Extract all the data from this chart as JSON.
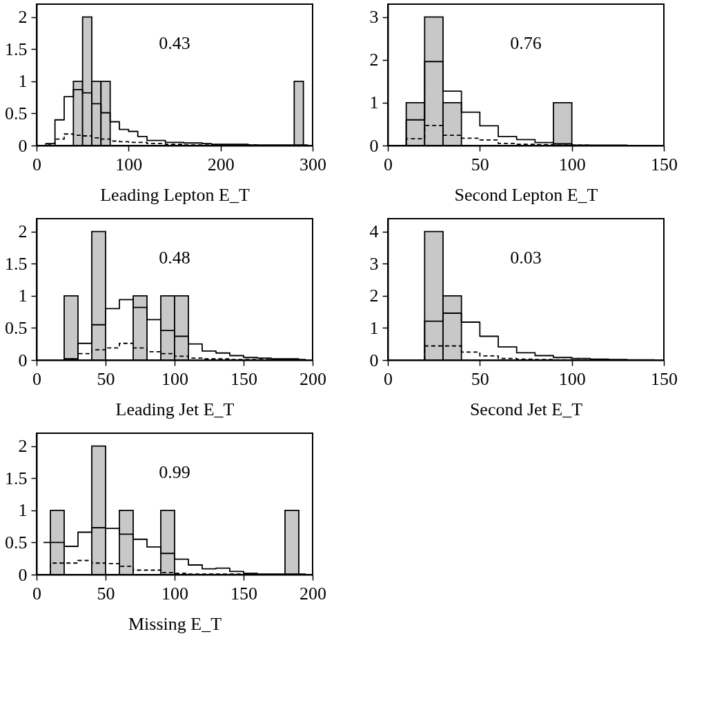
{
  "chart_data": [
    {
      "type": "bar",
      "xlabel": "Leading Lepton E_T",
      "annotations": [
        "0.43"
      ],
      "xlim": [
        0,
        300
      ],
      "xticks": [
        0,
        100,
        200,
        300
      ],
      "ylim": [
        0,
        2.2
      ],
      "yticks": [
        0,
        0.5,
        1,
        1.5,
        2
      ],
      "grid": false,
      "series": [
        {
          "type": "bar",
          "color": "#c8c8c8",
          "x": [
            5,
            15,
            25,
            35,
            45,
            55,
            65,
            75,
            85,
            95,
            105,
            115,
            125,
            135,
            145,
            155,
            165,
            175,
            185,
            195,
            205,
            215,
            225,
            235,
            245,
            255,
            265,
            275,
            285,
            295
          ],
          "values": [
            0,
            0,
            0,
            0,
            1,
            2,
            1,
            1,
            0,
            0,
            0,
            0,
            0,
            0,
            0,
            0,
            0,
            0,
            0,
            0,
            0,
            0,
            0,
            0,
            0,
            0,
            0,
            0,
            1,
            0
          ]
        },
        {
          "type": "step",
          "color": "#000000",
          "line_style": "solid",
          "x": [
            5,
            15,
            25,
            35,
            45,
            55,
            65,
            75,
            85,
            95,
            105,
            115,
            125,
            135,
            145,
            155,
            165,
            175,
            185,
            195,
            205,
            215,
            225,
            235,
            245,
            255,
            265,
            275,
            285,
            295
          ],
          "values": [
            0,
            0.03,
            0.4,
            0.76,
            0.87,
            0.82,
            0.65,
            0.51,
            0.37,
            0.25,
            0.22,
            0.14,
            0.08,
            0.08,
            0.05,
            0.05,
            0.04,
            0.04,
            0.03,
            0.02,
            0.02,
            0.02,
            0.02,
            0.01,
            0.01,
            0.01,
            0.01,
            0.01,
            0.01,
            0.01
          ]
        },
        {
          "type": "step",
          "color": "#000000",
          "line_style": "dashed",
          "x": [
            5,
            15,
            25,
            35,
            45,
            55,
            65,
            75,
            85,
            95,
            105,
            115,
            125,
            135,
            145,
            155,
            165,
            175,
            185,
            195,
            205,
            215,
            225,
            235,
            245,
            255,
            265,
            275,
            285,
            295
          ],
          "values": [
            0,
            0.01,
            0.1,
            0.18,
            0.16,
            0.15,
            0.12,
            0.1,
            0.07,
            0.06,
            0.05,
            0.05,
            0.03,
            0.03,
            0.02,
            0.02,
            0.01,
            0.01,
            0.01,
            0.01,
            0.01,
            0.01,
            0.01,
            0.01,
            0,
            0,
            0,
            0,
            0,
            0
          ]
        }
      ]
    },
    {
      "type": "bar",
      "xlabel": "Second Lepton E_T",
      "annotations": [
        "0.76"
      ],
      "xlim": [
        0,
        150
      ],
      "xticks": [
        0,
        50,
        100,
        150
      ],
      "ylim": [
        0,
        3.3
      ],
      "yticks": [
        0,
        1,
        2,
        3
      ],
      "grid": false,
      "series": [
        {
          "type": "bar",
          "color": "#c8c8c8",
          "x": [
            5,
            15,
            25,
            35,
            45,
            55,
            65,
            75,
            85,
            95,
            105,
            115,
            125,
            135,
            145
          ],
          "values": [
            0,
            1,
            3,
            1,
            0,
            0,
            0,
            0,
            0,
            1,
            0,
            0,
            0,
            0,
            0
          ]
        },
        {
          "type": "step",
          "color": "#000000",
          "line_style": "solid",
          "x": [
            5,
            15,
            25,
            35,
            45,
            55,
            65,
            75,
            85,
            95,
            105,
            115,
            125,
            135,
            145
          ],
          "values": [
            0,
            0.6,
            1.96,
            1.27,
            0.78,
            0.46,
            0.21,
            0.14,
            0.07,
            0.04,
            0.01,
            0.01,
            0.01,
            0,
            0
          ]
        },
        {
          "type": "step",
          "color": "#000000",
          "line_style": "dashed",
          "x": [
            5,
            15,
            25,
            35,
            45,
            55,
            65,
            75,
            85,
            95,
            105,
            115,
            125,
            135,
            145
          ],
          "values": [
            0,
            0.16,
            0.47,
            0.24,
            0.17,
            0.13,
            0.05,
            0.03,
            0.02,
            0.01,
            0.01,
            0,
            0,
            0,
            0
          ]
        }
      ]
    },
    {
      "type": "bar",
      "xlabel": "Leading Jet E_T",
      "annotations": [
        "0.48"
      ],
      "xlim": [
        0,
        200
      ],
      "xticks": [
        0,
        50,
        100,
        150,
        200
      ],
      "ylim": [
        0,
        2.2
      ],
      "yticks": [
        0,
        0.5,
        1,
        1.5,
        2
      ],
      "grid": false,
      "series": [
        {
          "type": "bar",
          "color": "#c8c8c8",
          "x": [
            5,
            15,
            25,
            35,
            45,
            55,
            65,
            75,
            85,
            95,
            105,
            115,
            125,
            135,
            145,
            155,
            165,
            175,
            185,
            195
          ],
          "values": [
            0,
            0,
            1,
            0,
            2,
            0,
            0,
            1,
            0,
            1,
            1,
            0,
            0,
            0,
            0,
            0,
            0,
            0,
            0,
            0
          ]
        },
        {
          "type": "step",
          "color": "#000000",
          "line_style": "solid",
          "x": [
            5,
            15,
            25,
            35,
            45,
            55,
            65,
            75,
            85,
            95,
            105,
            115,
            125,
            135,
            145,
            155,
            165,
            175,
            185,
            195
          ],
          "values": [
            0,
            0,
            0.02,
            0.26,
            0.55,
            0.8,
            0.94,
            0.82,
            0.63,
            0.46,
            0.37,
            0.25,
            0.14,
            0.11,
            0.07,
            0.04,
            0.03,
            0.02,
            0.02,
            0.01
          ]
        },
        {
          "type": "step",
          "color": "#000000",
          "line_style": "dashed",
          "x": [
            5,
            15,
            25,
            35,
            45,
            55,
            65,
            75,
            85,
            95,
            105,
            115,
            125,
            135,
            145,
            155,
            165,
            175,
            185,
            195
          ],
          "values": [
            0,
            0,
            0.02,
            0.1,
            0.16,
            0.19,
            0.26,
            0.19,
            0.13,
            0.1,
            0.06,
            0.03,
            0.02,
            0.02,
            0.01,
            0.01,
            0.01,
            0.01,
            0,
            0
          ]
        }
      ]
    },
    {
      "type": "bar",
      "xlabel": "Second Jet E_T",
      "annotations": [
        "0.03"
      ],
      "xlim": [
        0,
        150
      ],
      "xticks": [
        0,
        50,
        100,
        150
      ],
      "ylim": [
        0,
        4.4
      ],
      "yticks": [
        0,
        1,
        2,
        3,
        4
      ],
      "grid": false,
      "series": [
        {
          "type": "bar",
          "color": "#c8c8c8",
          "x": [
            5,
            15,
            25,
            35,
            45,
            55,
            65,
            75,
            85,
            95,
            105,
            115,
            125,
            135,
            145
          ],
          "values": [
            0,
            0,
            4,
            2,
            0,
            0,
            0,
            0,
            0,
            0,
            0,
            0,
            0,
            0,
            0
          ]
        },
        {
          "type": "step",
          "color": "#000000",
          "line_style": "solid",
          "x": [
            5,
            15,
            25,
            35,
            45,
            55,
            65,
            75,
            85,
            95,
            105,
            115,
            125,
            135,
            145
          ],
          "values": [
            0,
            0,
            1.21,
            1.46,
            1.18,
            0.74,
            0.41,
            0.23,
            0.14,
            0.08,
            0.05,
            0.03,
            0.02,
            0.01,
            0.01
          ]
        },
        {
          "type": "step",
          "color": "#000000",
          "line_style": "dashed",
          "x": [
            5,
            15,
            25,
            35,
            45,
            55,
            65,
            75,
            85,
            95,
            105,
            115,
            125,
            135,
            145
          ],
          "values": [
            0,
            0,
            0.44,
            0.44,
            0.25,
            0.13,
            0.05,
            0.03,
            0.02,
            0.01,
            0.01,
            0.01,
            0,
            0,
            0
          ]
        }
      ]
    },
    {
      "type": "bar",
      "xlabel": "Missing E_T",
      "annotations": [
        "0.99"
      ],
      "xlim": [
        0,
        200
      ],
      "xticks": [
        0,
        50,
        100,
        150,
        200
      ],
      "ylim": [
        0,
        2.2
      ],
      "yticks": [
        0,
        0.5,
        1,
        1.5,
        2
      ],
      "grid": false,
      "series": [
        {
          "type": "bar",
          "color": "#c8c8c8",
          "x": [
            5,
            15,
            25,
            35,
            45,
            55,
            65,
            75,
            85,
            95,
            105,
            115,
            125,
            135,
            145,
            155,
            165,
            175,
            185,
            195
          ],
          "values": [
            0,
            1,
            0,
            0,
            2,
            0,
            1,
            0,
            0,
            1,
            0,
            0,
            0,
            0,
            0,
            0,
            0,
            0,
            1,
            0
          ]
        },
        {
          "type": "step",
          "color": "#000000",
          "line_style": "solid",
          "x": [
            5,
            15,
            25,
            35,
            45,
            55,
            65,
            75,
            85,
            95,
            105,
            115,
            125,
            135,
            145,
            155,
            165,
            175,
            185,
            195
          ],
          "values": [
            0.5,
            0.5,
            0.44,
            0.66,
            0.73,
            0.72,
            0.63,
            0.55,
            0.43,
            0.33,
            0.24,
            0.15,
            0.09,
            0.1,
            0.05,
            0.02,
            0.01,
            0.01,
            0.01,
            0.01
          ]
        },
        {
          "type": "step",
          "color": "#000000",
          "line_style": "dashed",
          "x": [
            5,
            15,
            25,
            35,
            45,
            55,
            65,
            75,
            85,
            95,
            105,
            115,
            125,
            135,
            145,
            155,
            165,
            175,
            185,
            195
          ],
          "values": [
            0,
            0.18,
            0.18,
            0.22,
            0.18,
            0.17,
            0.13,
            0.07,
            0.07,
            0.03,
            0.02,
            0.01,
            0.01,
            0.01,
            0.01,
            0.01,
            0,
            0,
            0,
            0
          ]
        }
      ]
    }
  ]
}
